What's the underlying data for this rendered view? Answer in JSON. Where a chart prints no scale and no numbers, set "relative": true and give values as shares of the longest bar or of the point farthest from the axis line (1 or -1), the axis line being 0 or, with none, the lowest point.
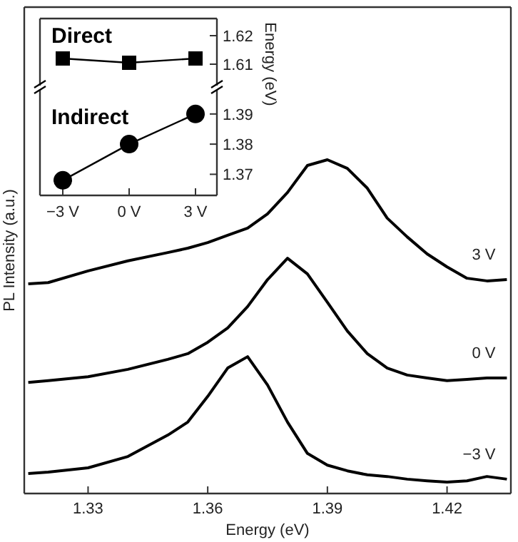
{
  "chart_data": [
    {
      "type": "line",
      "xlabel": "Energy (eV)",
      "ylabel": "PL Intensity (a.u.)",
      "relative": true,
      "xlim": [
        1.314,
        1.436
      ],
      "xticks": [
        1.33,
        1.36,
        1.39,
        1.42
      ],
      "line_style": "solid",
      "marker": "none",
      "x": [
        1.315,
        1.32,
        1.33,
        1.34,
        1.35,
        1.355,
        1.36,
        1.365,
        1.37,
        1.375,
        1.38,
        1.385,
        1.39,
        1.395,
        1.4,
        1.405,
        1.41,
        1.415,
        1.42,
        1.425,
        1.43,
        1.435
      ],
      "series": [
        {
          "name": "3 V",
          "color": "#000000",
          "values": [
            0.628,
            0.632,
            0.667,
            0.697,
            0.722,
            0.735,
            0.752,
            0.774,
            0.795,
            0.838,
            0.902,
            0.983,
            1.0,
            0.974,
            0.915,
            0.825,
            0.769,
            0.718,
            0.679,
            0.645,
            0.637,
            0.641
          ]
        },
        {
          "name": "0 V",
          "color": "#000000",
          "values": [
            0.333,
            0.338,
            0.35,
            0.372,
            0.402,
            0.419,
            0.453,
            0.496,
            0.56,
            0.641,
            0.705,
            0.658,
            0.573,
            0.487,
            0.419,
            0.376,
            0.355,
            0.346,
            0.338,
            0.342,
            0.346,
            0.346
          ]
        },
        {
          "name": "−3 V",
          "color": "#000000",
          "values": [
            0.06,
            0.064,
            0.077,
            0.111,
            0.175,
            0.214,
            0.291,
            0.376,
            0.41,
            0.325,
            0.214,
            0.12,
            0.085,
            0.068,
            0.056,
            0.051,
            0.043,
            0.038,
            0.034,
            0.038,
            0.051,
            0.043
          ]
        }
      ]
    },
    {
      "type": "line",
      "ylabel": "Energy (eV)",
      "annotations": [
        "Direct"
      ],
      "ylim": [
        1.6025,
        1.626
      ],
      "yticks": [
        1.61,
        1.62
      ],
      "tick_labels": "y",
      "marker": "square",
      "line_style": "solid",
      "series": [
        {
          "color": "#000000",
          "values": [
            1.612,
            1.6105,
            1.612
          ]
        }
      ]
    },
    {
      "type": "line",
      "categories": [
        "−3 V",
        "0 V",
        "3 V"
      ],
      "annotations": [
        "Indirect"
      ],
      "ylim": [
        1.363,
        1.398
      ],
      "yticks": [
        1.37,
        1.38,
        1.39
      ],
      "marker": "circle",
      "line_style": "solid",
      "series": [
        {
          "color": "#000000",
          "values": [
            1.368,
            1.38,
            1.39
          ]
        }
      ]
    }
  ]
}
